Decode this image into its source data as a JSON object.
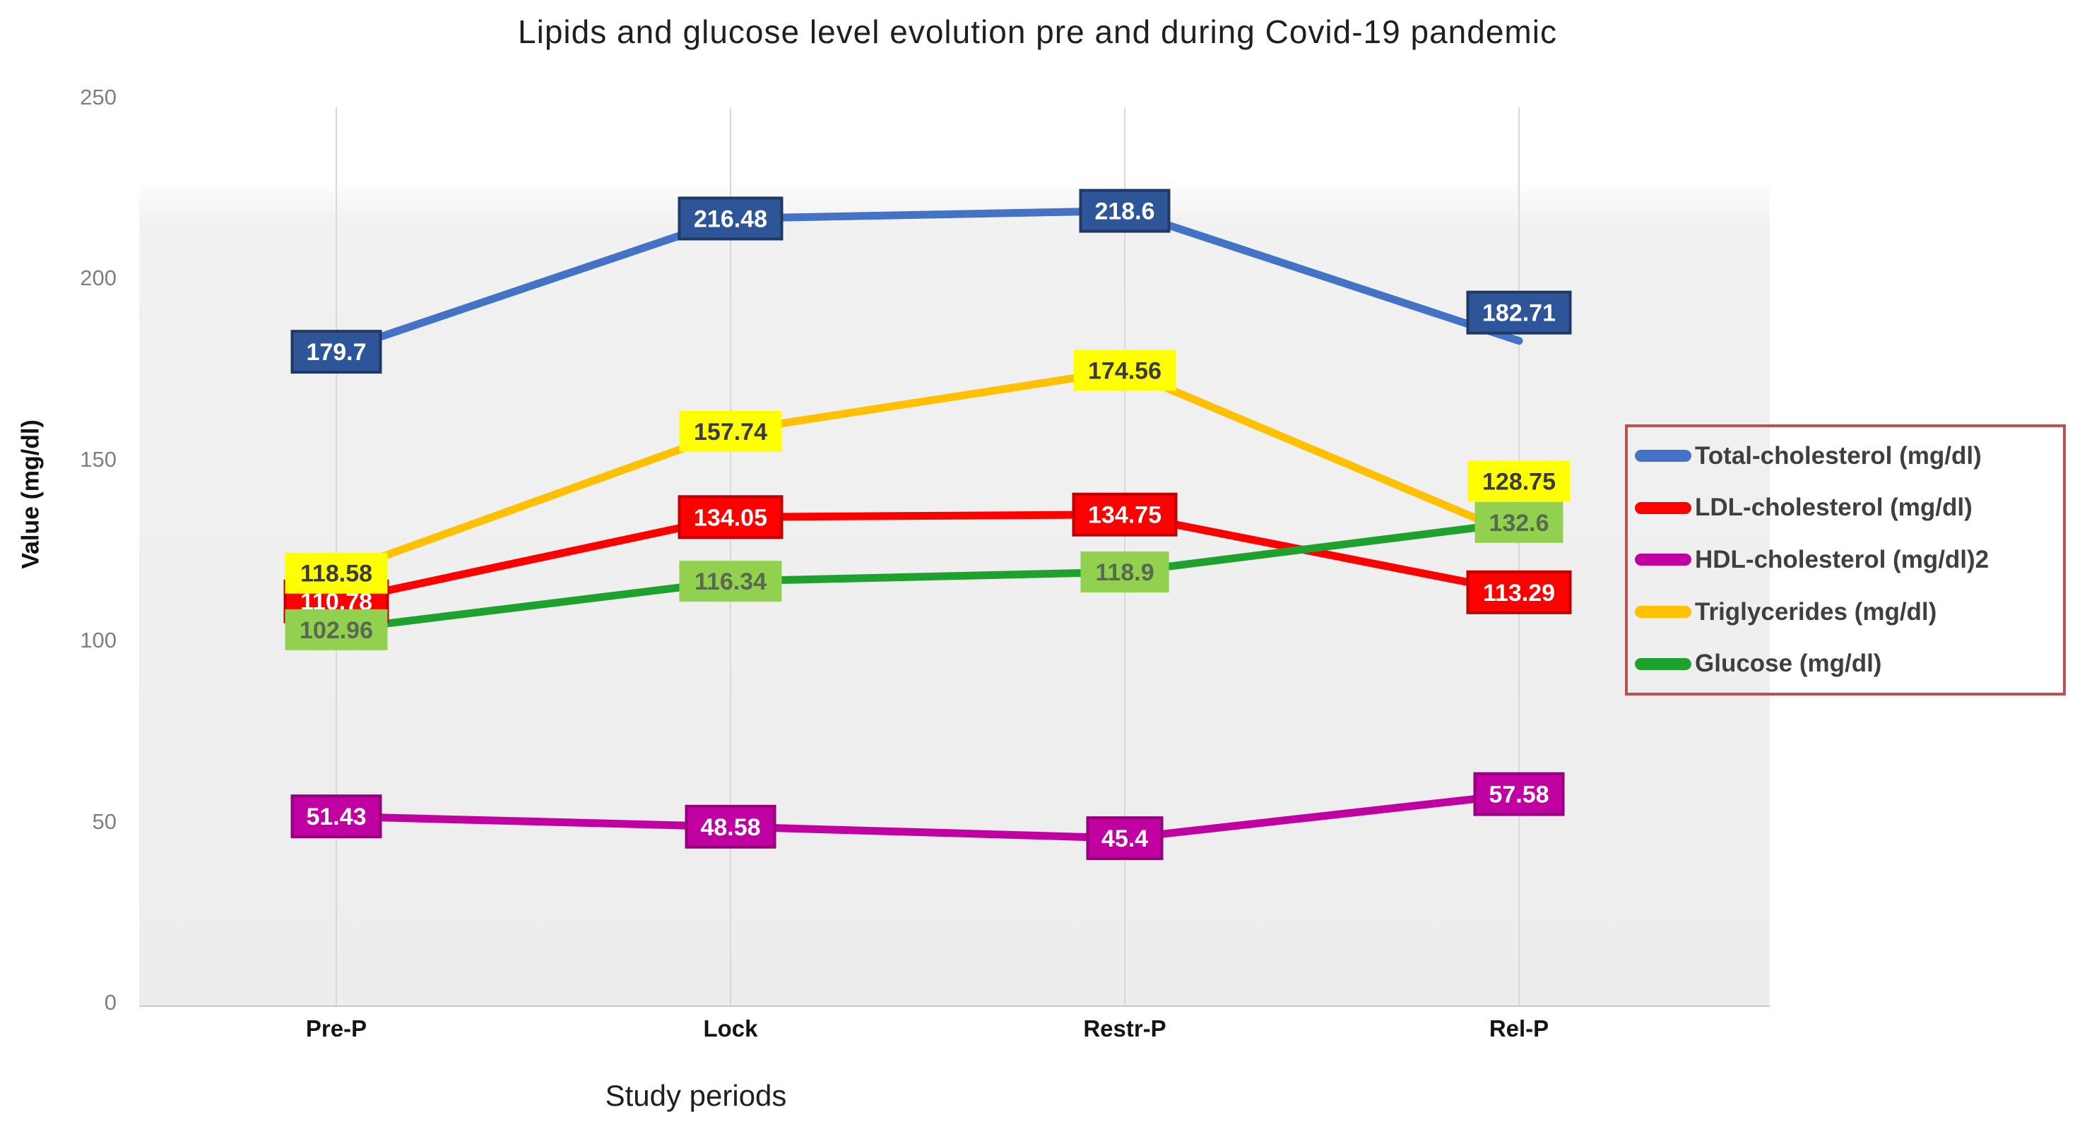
{
  "chart_data": {
    "type": "line",
    "title": "Lipids and glucose level evolution  pre and during Covid-19 pandemic",
    "xlabel": "Study periods",
    "ylabel": "Value (mg/dl)",
    "categories": [
      "Pre-P",
      "Lock",
      "Restr-P",
      "Rel-P"
    ],
    "y_ticks": [
      "0",
      "50",
      "100",
      "150",
      "200",
      "250"
    ],
    "ylim": [
      0,
      250
    ],
    "grid": "vertical-only",
    "legend_position": "right",
    "plot_bg": "#ededed",
    "gridline_color": "#d9d9d9",
    "axis_line_color": "#c9c9c9",
    "legend_border_color": "#C0504D",
    "series": [
      {
        "name": "Total-cholesterol (mg/dl)",
        "values": [
          179.7,
          216.48,
          218.6,
          182.71
        ],
        "color": "#4472C4",
        "label_bg": "#2E5597",
        "label_border": "#1F3864",
        "label_text_color": "#FFFFFF",
        "label_dy": [
          0,
          0,
          0,
          -40
        ]
      },
      {
        "name": "LDL-cholesterol (mg/dl)",
        "values": [
          110.78,
          134.05,
          134.75,
          113.29
        ],
        "color": "#FF0000",
        "label_bg": "#FF0000",
        "label_border": "#C00000",
        "label_text_color": "#FFFFFF",
        "label_dy": [
          0,
          0,
          0,
          0
        ]
      },
      {
        "name": "HDL-cholesterol (mg/dl)2",
        "values": [
          51.43,
          48.58,
          45.4,
          57.58
        ],
        "color": "#C000A0",
        "label_bg": "#C000A0",
        "label_border": "#95007C",
        "label_text_color": "#FFFFFF",
        "label_dy": [
          0,
          0,
          0,
          0
        ]
      },
      {
        "name": "Triglycerides (mg/dl)",
        "values": [
          118.58,
          157.74,
          174.56,
          128.75
        ],
        "color": "#FFC000",
        "label_bg": "#FFFF00",
        "label_border": "",
        "label_text_color": "#3b3b3b",
        "label_dy": [
          0,
          0,
          0,
          -78
        ]
      },
      {
        "name": "Glucose (mg/dl)",
        "values": [
          102.96,
          116.34,
          118.9,
          132.6
        ],
        "color": "#1FA12E",
        "label_bg": "#92D050",
        "label_border": "",
        "label_text_color": "#5a6a50",
        "label_dy": [
          0,
          0,
          0,
          0
        ]
      }
    ]
  }
}
